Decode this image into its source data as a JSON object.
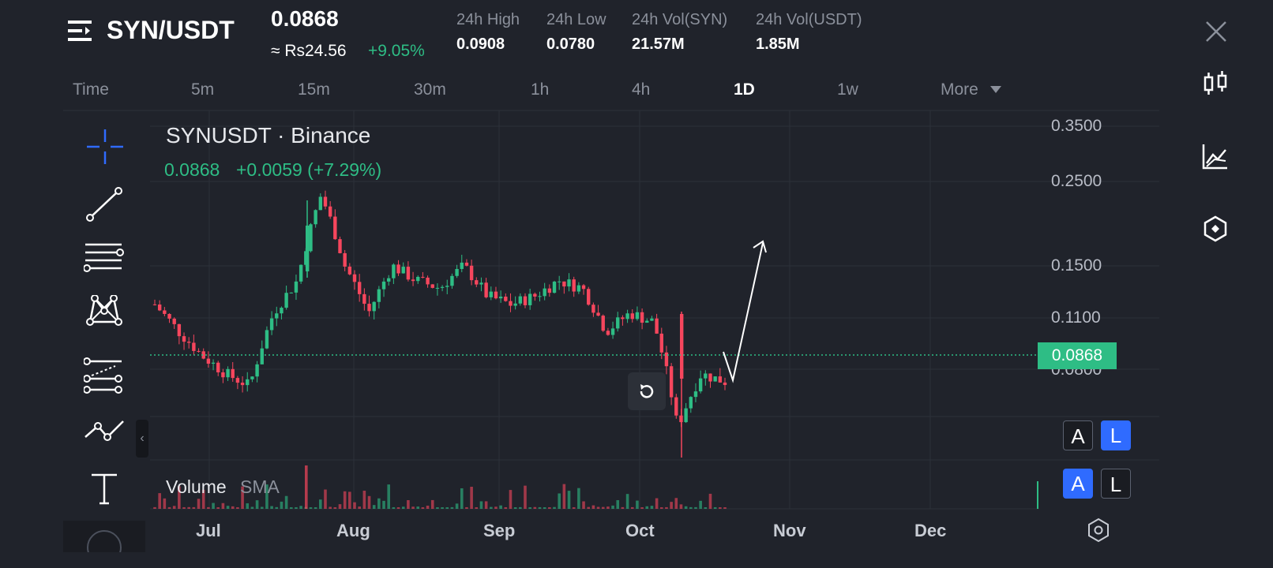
{
  "header": {
    "pair": "SYN/USDT",
    "price": "0.0868",
    "fiat": "≈ Rs24.56",
    "change": "+9.05%",
    "stats": [
      {
        "label": "24h High",
        "value": "0.0908"
      },
      {
        "label": "24h Low",
        "value": "0.0780"
      },
      {
        "label": "24h Vol(SYN)",
        "value": "21.57M"
      },
      {
        "label": "24h Vol(USDT)",
        "value": "1.85M"
      }
    ]
  },
  "timeframes": [
    "Time",
    "5m",
    "15m",
    "30m",
    "1h",
    "4h",
    "1D",
    "1w",
    "More"
  ],
  "active_timeframe": "1D",
  "chart": {
    "symbol_title": "SYNUSDT · Binance",
    "last": "0.0868",
    "change": "+0.0059 (+7.29%)",
    "volume_label": "Volume",
    "volume_sma": "SMA",
    "price_tag": "0.0868",
    "y_ticks": [
      "0.3500",
      "0.2500",
      "0.1500",
      "0.1100",
      "0.0800"
    ],
    "x_ticks": [
      "Jul",
      "Aug",
      "Sep",
      "Oct",
      "Nov",
      "Dec"
    ]
  },
  "scale_buttons": {
    "auto": "A",
    "log": "L"
  },
  "colors": {
    "up": "#2ebd85",
    "down": "#f6465d",
    "accent": "#2f6bff",
    "bg": "#20232b"
  },
  "icons": [
    "menu-icon",
    "close-icon",
    "candles-icon",
    "indicators-icon",
    "settings-icon",
    "crosshair-icon",
    "trendline-icon",
    "fib-icon",
    "pattern-icon",
    "projection-icon",
    "polyline-icon",
    "text-icon",
    "reset-icon",
    "collapse-icon"
  ],
  "chart_data": {
    "type": "candlestick",
    "x": [
      "Jul",
      "Aug",
      "Sep",
      "Oct",
      "Nov",
      "Dec"
    ],
    "y_ticks": [
      0.35,
      0.25,
      0.15,
      0.11,
      0.08
    ],
    "log_scale": true,
    "last_price": 0.0868,
    "close_trend": [
      0.125,
      0.11,
      0.098,
      0.09,
      0.085,
      0.12,
      0.14,
      0.21,
      0.15,
      0.12,
      0.15,
      0.14,
      0.135,
      0.15,
      0.13,
      0.125,
      0.13,
      0.14,
      0.135,
      0.11,
      0.12,
      0.115,
      0.07,
      0.09,
      0.0868
    ]
  }
}
